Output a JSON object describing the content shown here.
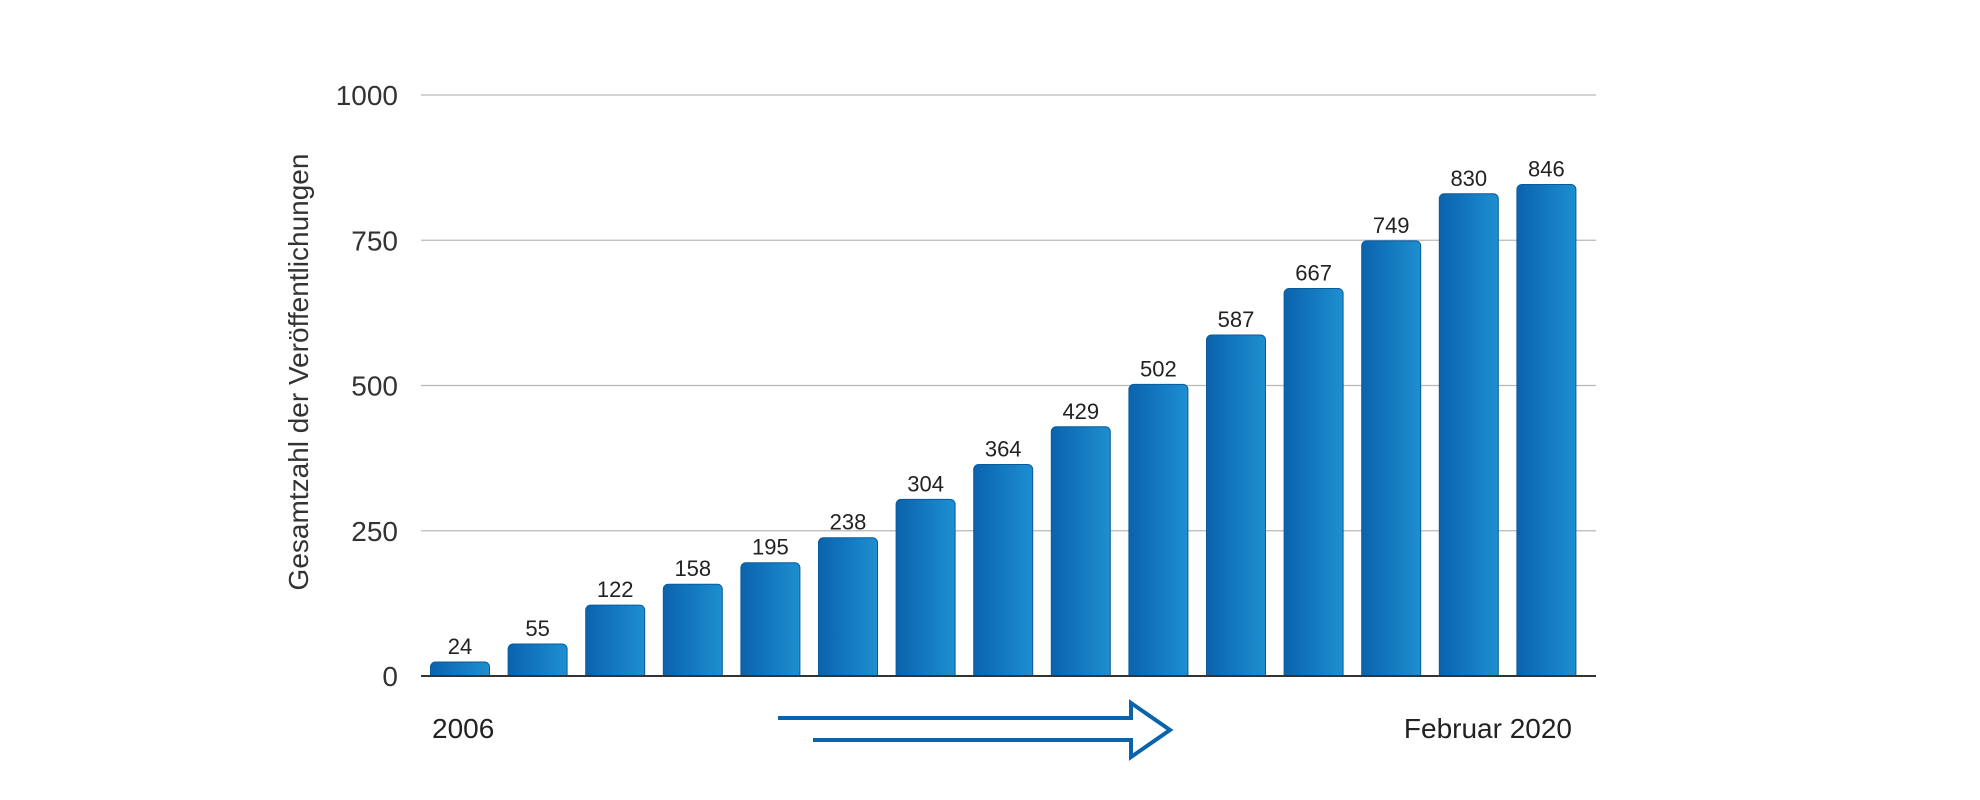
{
  "chart_data": {
    "type": "bar",
    "categories": [
      "2006",
      "",
      "",
      "",
      "",
      "",
      "",
      "",
      "",
      "",
      "",
      "",
      "",
      "",
      "Februar 2020"
    ],
    "values": [
      24,
      55,
      122,
      158,
      195,
      238,
      304,
      364,
      429,
      502,
      587,
      667,
      749,
      830,
      846
    ],
    "ylabel": "Gesamtzahl der Veröffentlichungen",
    "ylim": [
      0,
      1000
    ],
    "yticks": [
      0,
      250,
      500,
      750,
      1000
    ],
    "ytick_labels": [
      "0",
      "250",
      "500",
      "750",
      "1000"
    ],
    "grid": true,
    "start_label": "2006",
    "end_label": "Februar 2020",
    "colors": {
      "bar_dark": "#0a63ad",
      "bar_light": "#1e8fd0",
      "bar_edge": "#0a5a9c",
      "arrow": "#0a63ad",
      "grid": "#b8b8b8",
      "axis": "#333333"
    }
  }
}
